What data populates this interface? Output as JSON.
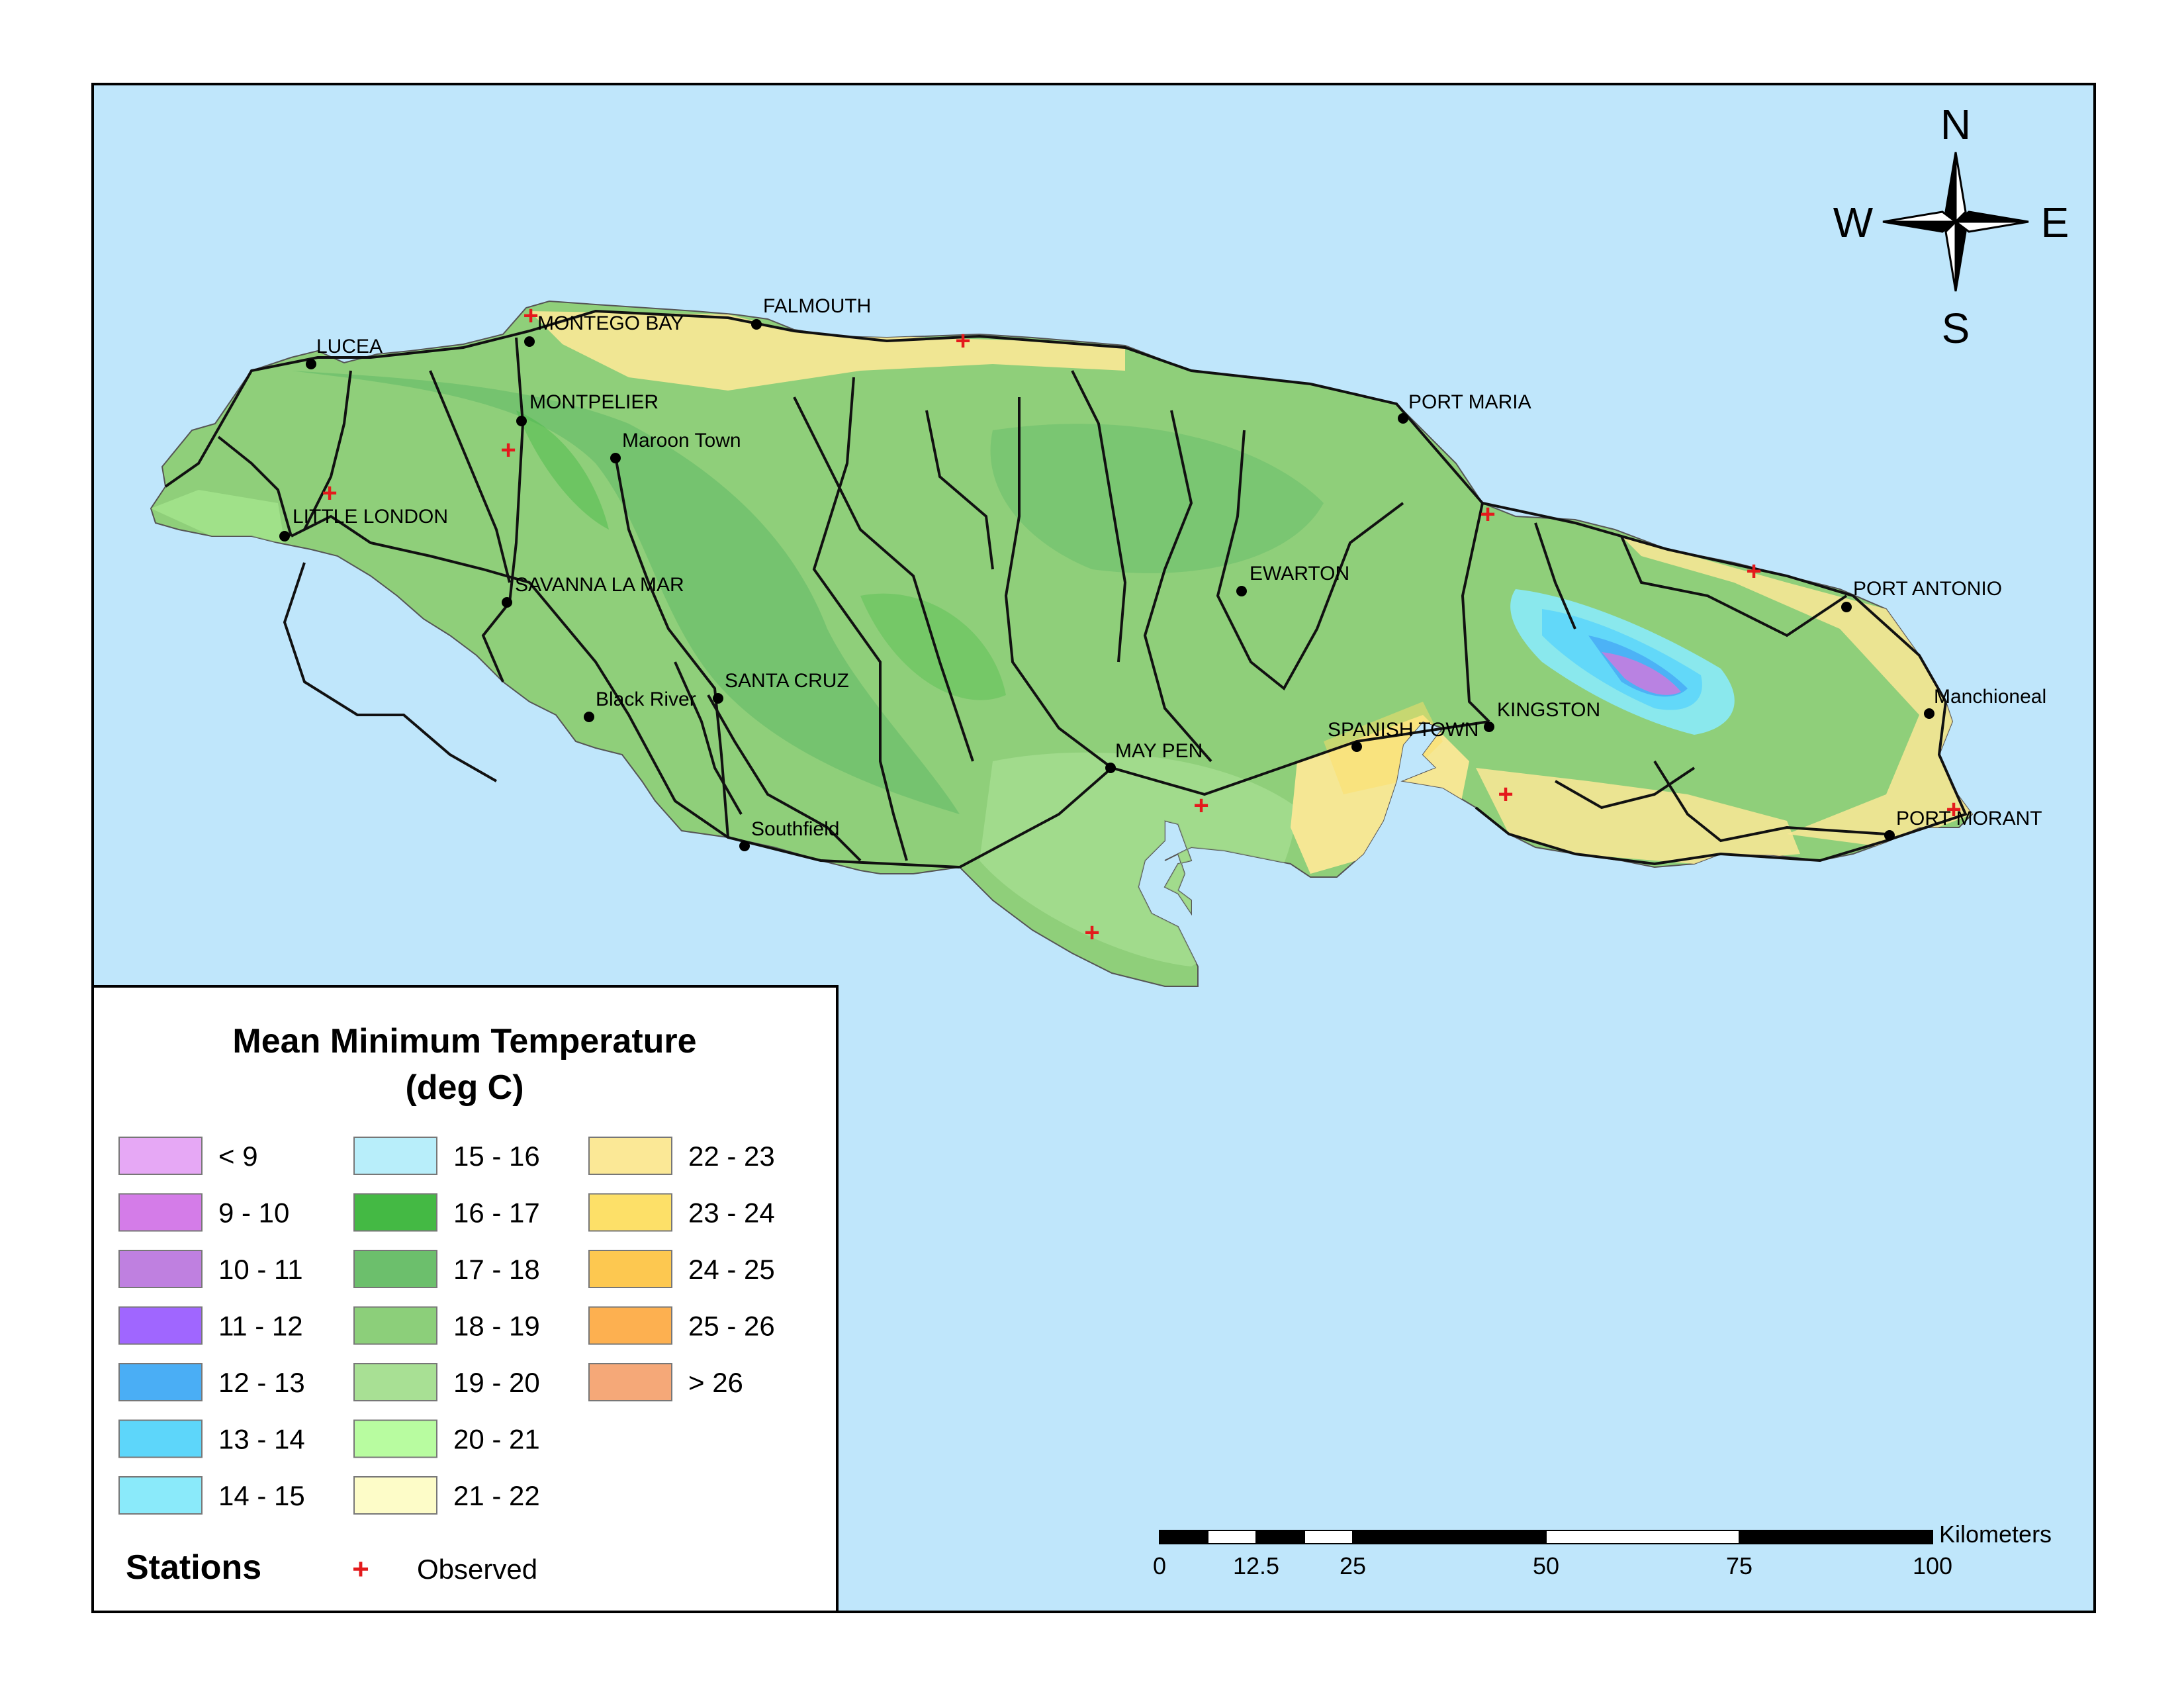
{
  "map": {
    "ocean_color": "#bfe6fb",
    "land_color": "#8fcf7a",
    "road_color": "#111111",
    "station_color": "#e41a1c"
  },
  "cities": [
    {
      "label": "MONTEGO BAY"
    },
    {
      "label": "FALMOUTH"
    },
    {
      "label": "LUCEA"
    },
    {
      "label": "MONTPELIER"
    },
    {
      "label": "Maroon Town"
    },
    {
      "label": "PORT MARIA"
    },
    {
      "label": "LITTLE LONDON"
    },
    {
      "label": "SAVANNA LA MAR"
    },
    {
      "label": "EWARTON"
    },
    {
      "label": "PORT ANTONIO"
    },
    {
      "label": "Black River"
    },
    {
      "label": "SANTA CRUZ"
    },
    {
      "label": "KINGSTON"
    },
    {
      "label": "SPANISH TOWN"
    },
    {
      "label": "MAY PEN"
    },
    {
      "label": "Manchioneal"
    },
    {
      "label": "Southfield"
    },
    {
      "label": "PORT MORANT"
    }
  ],
  "compass": {
    "n": "N",
    "s": "S",
    "e": "E",
    "w": "W"
  },
  "legend": {
    "title_line1": "Mean Minimum Temperature",
    "title_line2": "(deg C)",
    "classes": [
      {
        "label": "< 9",
        "color": "#e6a8f5"
      },
      {
        "label": "9 - 10",
        "color": "#d47ce8"
      },
      {
        "label": "10 - 11",
        "color": "#bf80e0"
      },
      {
        "label": "11 - 12",
        "color": "#a066ff"
      },
      {
        "label": "12 - 13",
        "color": "#4aaef5"
      },
      {
        "label": "13 - 14",
        "color": "#5dd6fa"
      },
      {
        "label": "14 - 15",
        "color": "#8aeafa"
      },
      {
        "label": "15 - 16",
        "color": "#b8eefa"
      },
      {
        "label": "16 - 17",
        "color": "#44b944"
      },
      {
        "label": "17 - 18",
        "color": "#6cbf6c"
      },
      {
        "label": "18 - 19",
        "color": "#8ccf7a"
      },
      {
        "label": "19 - 20",
        "color": "#a8e094"
      },
      {
        "label": "20 - 21",
        "color": "#b8fca0"
      },
      {
        "label": "21 - 22",
        "color": "#fdfcc8"
      },
      {
        "label": "22 - 23",
        "color": "#fbe896"
      },
      {
        "label": "23 - 24",
        "color": "#fde068"
      },
      {
        "label": "24 - 25",
        "color": "#fdc850"
      },
      {
        "label": "25 - 26",
        "color": "#fdb050"
      },
      {
        "label": "> 26",
        "color": "#f5a878"
      }
    ],
    "stations_label": "Stations",
    "observed_label": "Observed",
    "observed_symbol": "+"
  },
  "scale_bar": {
    "unit": "Kilometers",
    "ticks": [
      "0",
      "12.5",
      "25",
      "50",
      "75",
      "100"
    ]
  }
}
